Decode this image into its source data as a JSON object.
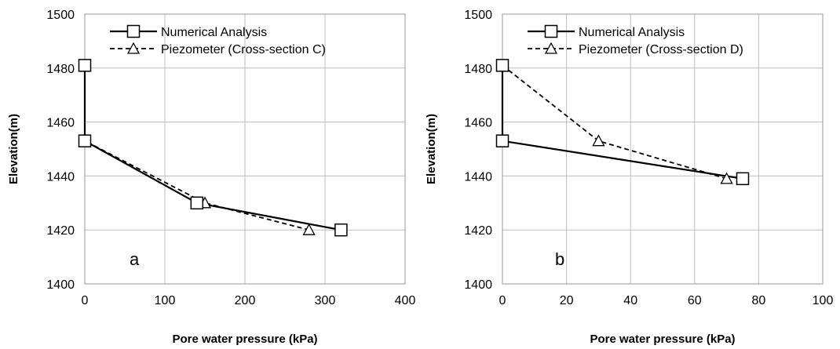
{
  "chart_data": [
    {
      "type": "line",
      "panel_label": "a",
      "xlabel": "Pore water pressure (kPa)",
      "ylabel": "Elevation(m)",
      "xlim": [
        0,
        400
      ],
      "ylim": [
        1400,
        1500
      ],
      "x_ticks": [
        0,
        100,
        200,
        300,
        400
      ],
      "y_ticks": [
        1400,
        1420,
        1440,
        1460,
        1480,
        1500
      ],
      "grid": true,
      "legend_position": "top-left",
      "series": [
        {
          "name": "Numerical Analysis",
          "line_style": "solid",
          "marker": "square",
          "points": [
            {
              "x": 0,
              "y": 1481
            },
            {
              "x": 0,
              "y": 1453
            },
            {
              "x": 140,
              "y": 1430
            },
            {
              "x": 320,
              "y": 1420
            }
          ]
        },
        {
          "name": "Piezometer (Cross-section C)",
          "line_style": "dashed",
          "marker": "triangle",
          "points": [
            {
              "x": 0,
              "y": 1481
            },
            {
              "x": 0,
              "y": 1453
            },
            {
              "x": 150,
              "y": 1430
            },
            {
              "x": 280,
              "y": 1420
            }
          ]
        }
      ]
    },
    {
      "type": "line",
      "panel_label": "b",
      "xlabel": "Pore water pressure (kPa)",
      "ylabel": "Elevation(m)",
      "xlim": [
        0,
        100
      ],
      "ylim": [
        1400,
        1500
      ],
      "x_ticks": [
        0,
        20,
        40,
        60,
        80,
        100
      ],
      "y_ticks": [
        1400,
        1420,
        1440,
        1460,
        1480,
        1500
      ],
      "grid": true,
      "legend_position": "top-left",
      "series": [
        {
          "name": "Numerical Analysis",
          "line_style": "solid",
          "marker": "square",
          "points": [
            {
              "x": 0,
              "y": 1481
            },
            {
              "x": 0,
              "y": 1453
            },
            {
              "x": 75,
              "y": 1439
            }
          ]
        },
        {
          "name": "Piezometer (Cross-section D)",
          "line_style": "dashed",
          "marker": "triangle",
          "points": [
            {
              "x": 0,
              "y": 1481
            },
            {
              "x": 30,
              "y": 1453
            },
            {
              "x": 70,
              "y": 1439
            }
          ]
        }
      ]
    }
  ]
}
